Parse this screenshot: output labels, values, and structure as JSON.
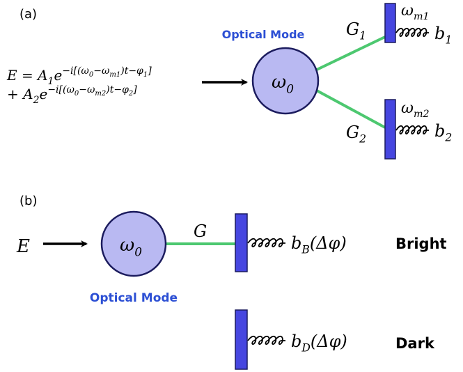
{
  "panel_a": {
    "label": "(a)",
    "mode_label": "Optical Mode",
    "cavity": {
      "base": "ω",
      "sub": "0"
    },
    "equation": {
      "line1": [
        "E = A",
        "1",
        "e",
        "−i[(ω",
        "0",
        "−ω",
        "m1",
        ")t−φ",
        "1",
        "]"
      ],
      "line2": [
        "+ A",
        "2",
        "e",
        "−i[(ω",
        "0",
        "−ω",
        "m2",
        ")t−φ",
        "2",
        "]"
      ]
    },
    "couplings": [
      {
        "base": "G",
        "sub": "1"
      },
      {
        "base": "G",
        "sub": "2"
      }
    ],
    "mechanics": [
      {
        "freq": {
          "base": "ω",
          "sub": "m1"
        },
        "mode": {
          "base": "b",
          "sub": "1"
        }
      },
      {
        "freq": {
          "base": "ω",
          "sub": "m2"
        },
        "mode": {
          "base": "b",
          "sub": "2"
        }
      }
    ]
  },
  "panel_b": {
    "label": "(b)",
    "input": "E",
    "mode_label": "Optical Mode",
    "cavity": {
      "base": "ω",
      "sub": "0"
    },
    "coupling": "G",
    "mechanics": [
      {
        "mode": {
          "base": "b",
          "sub": "B",
          "arg": "(Δφ)"
        },
        "state": "Bright"
      },
      {
        "mode": {
          "base": "b",
          "sub": "D",
          "arg": "(Δφ)"
        },
        "state": "Dark"
      }
    ]
  }
}
